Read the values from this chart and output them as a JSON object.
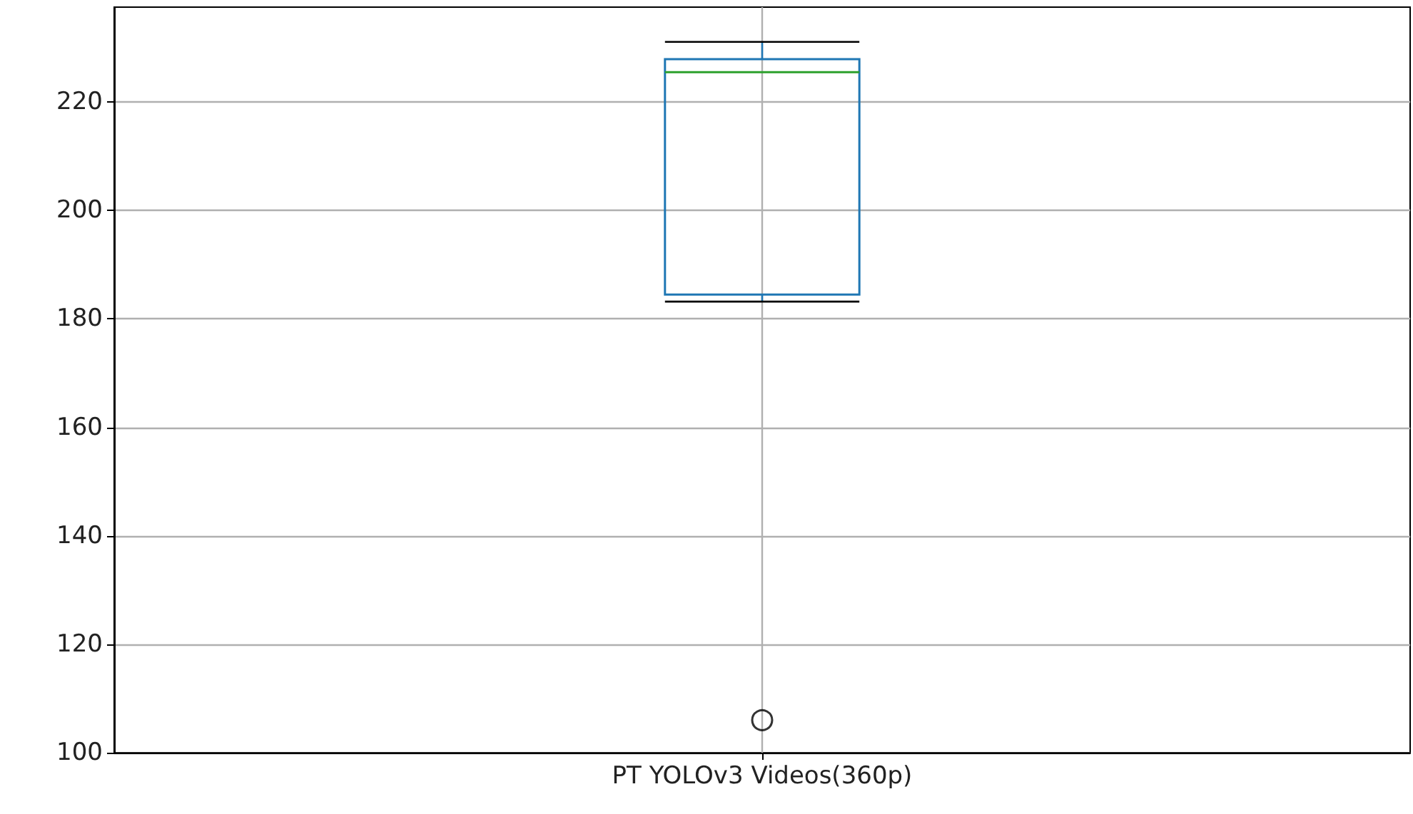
{
  "chart_data": {
    "type": "box",
    "categories": [
      "PT YOLOv3 Videos(360p)"
    ],
    "series": [
      {
        "color": "#1f77b4",
        "boxes": [
          {
            "low": 183.2,
            "q1": 184.5,
            "median": 225.5,
            "q3": 227.9,
            "high": 231.1,
            "outliers": [
              106
            ]
          }
        ]
      }
    ],
    "ylim": [
      100,
      237.5
    ],
    "yticks": [
      100,
      120,
      140,
      160,
      180,
      200,
      220
    ],
    "grid": true
  }
}
